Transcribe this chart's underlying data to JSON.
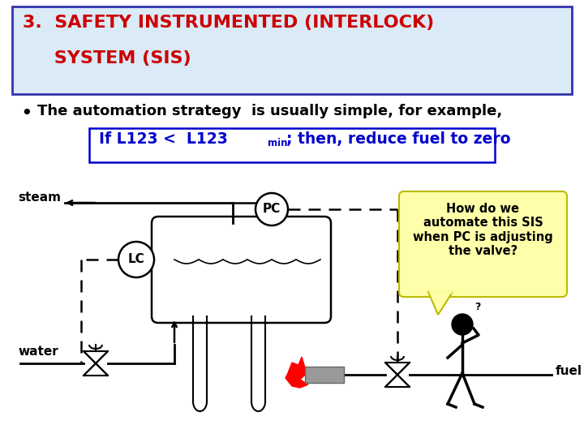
{
  "bg_color": "#ffffff",
  "header_bg": "#daeaf7",
  "header_border": "#3333aa",
  "header_text_line1": "3.  SAFETY INSTRUMENTED (INTERLOCK)",
  "header_text_line2": "     SYSTEM (SIS)",
  "header_color": "#cc0000",
  "bullet_text": "The automation strategy  is usually simple, for example,",
  "bullet_color": "#000000",
  "box_text_color": "#0000cc",
  "box_border": "#0000cc",
  "box_bg": "#ffffff",
  "callout_text": "How do we\nautomate this SIS\nwhen PC is adjusting\nthe valve?",
  "callout_bg": "#ffffaa",
  "callout_border": "#bbbb00",
  "steam_label": "steam",
  "water_label": "water",
  "fuel_label": "fuel",
  "pc_label": "PC",
  "lc_label": "LC"
}
